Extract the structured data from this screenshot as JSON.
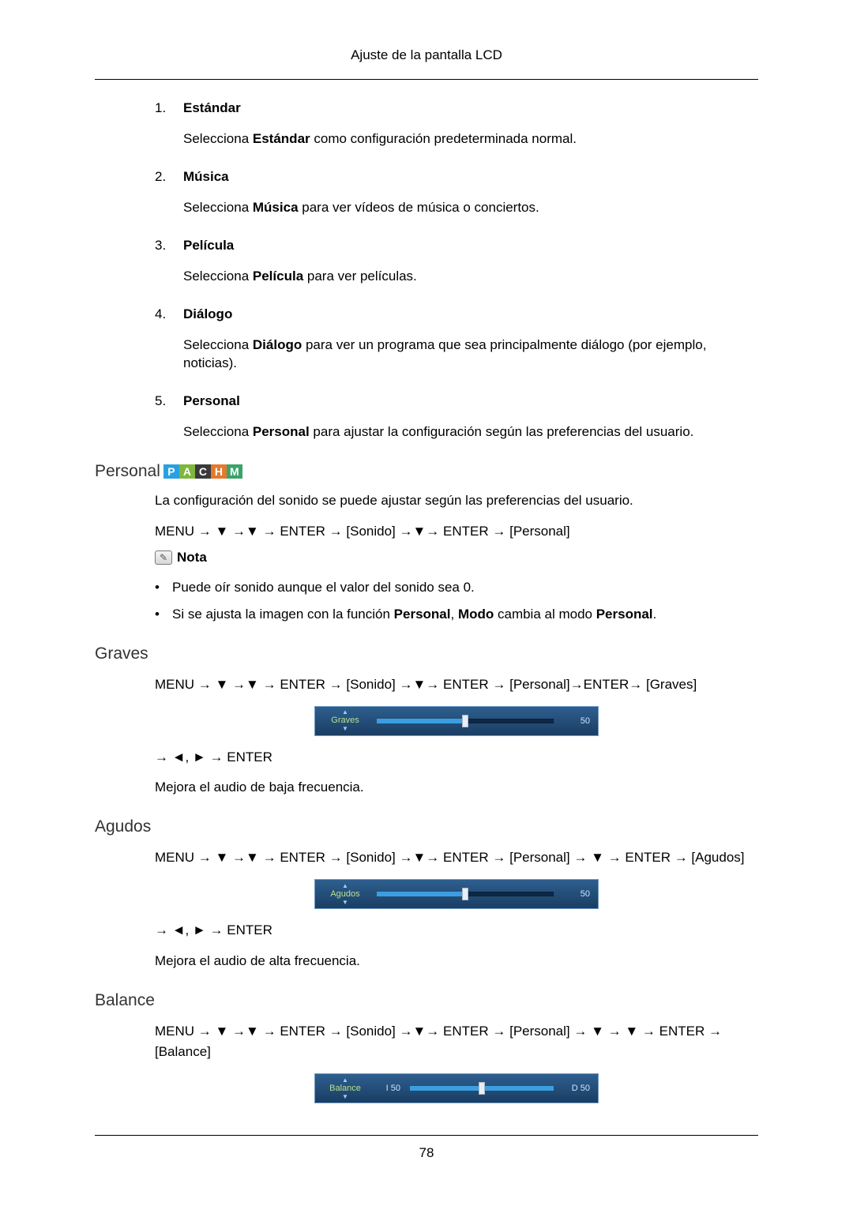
{
  "header_title": "Ajuste de la pantalla LCD",
  "page_number": "78",
  "colors": {
    "section_heading": "#333333",
    "osd_bg_top": "#2e5f8f",
    "osd_bg_bottom": "#1a3d63",
    "osd_label": "#b9e28a",
    "osd_value": "#cfe6ff",
    "osd_fill": "#3c9ee0"
  },
  "badges": [
    {
      "letter": "P",
      "bg": "#2aa1df"
    },
    {
      "letter": "A",
      "bg": "#7fb63c"
    },
    {
      "letter": "C",
      "bg": "#3a3a3a"
    },
    {
      "letter": "H",
      "bg": "#e27a2e"
    },
    {
      "letter": "M",
      "bg": "#3aa36a"
    }
  ],
  "list": [
    {
      "num": "1.",
      "title": "Estándar",
      "desc_pre": "Selecciona ",
      "desc_bold": "Estándar",
      "desc_post": " como configuración predeterminada normal."
    },
    {
      "num": "2.",
      "title": "Música",
      "desc_pre": "Selecciona ",
      "desc_bold": "Música",
      "desc_post": " para ver vídeos de música o conciertos."
    },
    {
      "num": "3.",
      "title": "Película",
      "desc_pre": "Selecciona ",
      "desc_bold": "Película",
      "desc_post": " para ver películas."
    },
    {
      "num": "4.",
      "title": "Diálogo",
      "desc_pre": "Selecciona ",
      "desc_bold": "Diálogo",
      "desc_post": " para ver un programa que sea principalmente diálogo (por ejemplo, noticias)."
    },
    {
      "num": "5.",
      "title": "Personal",
      "desc_pre": "Selecciona ",
      "desc_bold": "Personal",
      "desc_post": " para ajustar la configuración según las preferencias del usuario."
    }
  ],
  "personal_section": {
    "heading": "Personal",
    "intro": "La configuración del sonido se puede ajustar según las preferencias del usuario.",
    "nav": "MENU → ▼ →▼ → ENTER → [Sonido] →▼→ ENTER → [Personal]",
    "nota_label": "Nota",
    "bullets": [
      "Puede oír sonido aunque el valor del sonido sea 0.",
      {
        "pre": "Si se ajusta la imagen con la función ",
        "b1": "Personal",
        "mid1": ", ",
        "b2": "Modo",
        "mid2": " cambia al modo ",
        "b3": "Personal",
        "post": "."
      }
    ]
  },
  "graves_section": {
    "heading": "Graves",
    "nav": "MENU → ▼ →▼ → ENTER → [Sonido] →▼→ ENTER → [Personal]→ENTER→ [Graves]",
    "osd": {
      "label": "Graves",
      "value": "50",
      "percent": 50
    },
    "nav2": "→ ◄, ► → ENTER",
    "desc": "Mejora el audio de baja frecuencia."
  },
  "agudos_section": {
    "heading": "Agudos",
    "nav": "MENU → ▼ →▼ → ENTER → [Sonido] →▼→ ENTER → [Personal] → ▼ → ENTER → [Agudos]",
    "osd": {
      "label": "Agudos",
      "value": "50",
      "percent": 50
    },
    "nav2": "→ ◄, ► → ENTER",
    "desc": "Mejora el audio de alta frecuencia."
  },
  "balance_section": {
    "heading": "Balance",
    "nav": "MENU → ▼ →▼ → ENTER → [Sonido] →▼→ ENTER → [Personal] → ▼ → ▼ → ENTER → [Balance]",
    "osd": {
      "label": "Balance",
      "left": "I  50",
      "right": "D  50",
      "percent": 50
    }
  }
}
